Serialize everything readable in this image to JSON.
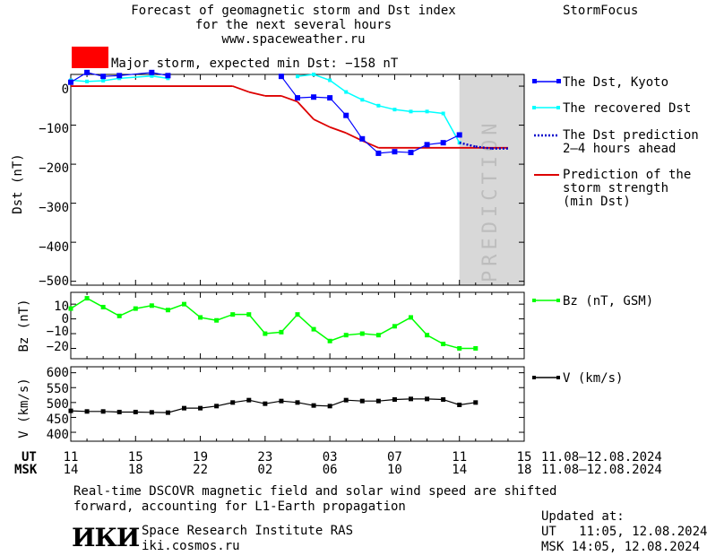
{
  "header": {
    "title_line1": "Forecast of geomagnetic storm and Dst index",
    "title_line2": "for the next several hours",
    "site": "www.spaceweather.ru",
    "brand": "StormFocus",
    "storm_label": "Major storm, expected min Dst: −158 nT",
    "storm_color": "#ff0000"
  },
  "colors": {
    "dst_kyoto": "#0000ff",
    "recovered": "#00ffff",
    "prediction_line": "#0000cc",
    "storm_strength": "#dd0000",
    "bz": "#00ff00",
    "speed": "#000000",
    "prediction_band": "#d8d8d8"
  },
  "panels": {
    "dst": {
      "ylabel": "Dst (nT)",
      "yticks": [
        "0",
        "−100",
        "−200",
        "−300",
        "−400",
        "−500"
      ]
    },
    "bz": {
      "ylabel": "Bz (nT)",
      "yticks": [
        "10",
        "0",
        "−10",
        "−20"
      ]
    },
    "v": {
      "ylabel": "V (km/s)",
      "yticks": [
        "600",
        "550",
        "500",
        "450",
        "400"
      ]
    }
  },
  "prediction_band_label": "PREDICTION",
  "legend": {
    "dst_kyoto": "The Dst, Kyoto",
    "recovered": "The recovered Dst",
    "prediction": [
      "The Dst prediction",
      "2–4 hours ahead"
    ],
    "storm_strength": [
      "Prediction of the",
      "storm strength",
      "(min Dst)"
    ],
    "bz": "Bz (nT, GSM)",
    "v": "V (km/s)"
  },
  "time_axis": {
    "ut_label": "UT",
    "msk_label": "MSK",
    "ut_ticks": [
      "11",
      "15",
      "19",
      "23",
      "03",
      "07",
      "11",
      "15"
    ],
    "msk_ticks": [
      "14",
      "18",
      "22",
      "02",
      "06",
      "10",
      "14",
      "18"
    ],
    "ut_range": "11.08–12.08.2024",
    "msk_range": "11.08–12.08.2024"
  },
  "footer": {
    "note_line1": "Real-time DSCOVR magnetic field and solar wind speed are shifted",
    "note_line2": "forward, accounting for L1-Earth propagation",
    "logo": "ИКИ",
    "institute": "Space Research Institute RAS",
    "institute_url": "iki.cosmos.ru",
    "updated_label": "Updated at:",
    "updated_ut": "UT   11:05, 12.08.2024",
    "updated_msk": "MSK 14:05, 12.08.2024"
  },
  "chart_data": [
    {
      "type": "line",
      "ylabel": "Dst (nT)",
      "ylim": [
        -510,
        30
      ],
      "xlim_hours": [
        0,
        28
      ],
      "prediction_band_hours": [
        24,
        28
      ],
      "series": [
        {
          "name": "The Dst, Kyoto",
          "x": [
            0,
            1,
            2,
            3,
            5,
            6,
            13,
            14,
            15,
            16,
            17,
            18,
            19,
            20,
            21,
            22,
            23,
            24
          ],
          "y": [
            10,
            35,
            25,
            27,
            35,
            27,
            25,
            -30,
            -28,
            -30,
            -75,
            -135,
            -172,
            -168,
            -170,
            -150,
            -145,
            -125
          ]
        },
        {
          "name": "The recovered Dst",
          "x": [
            0,
            1,
            2,
            3,
            5,
            6,
            14,
            15,
            16,
            17,
            18,
            19,
            20,
            21,
            22,
            23,
            24
          ],
          "y": [
            15,
            12,
            14,
            20,
            26,
            20,
            25,
            30,
            15,
            -15,
            -35,
            -50,
            -60,
            -65,
            -65,
            -70,
            -145
          ]
        },
        {
          "name": "The Dst prediction 2–4 hours ahead",
          "x": [
            24,
            25,
            26,
            27
          ],
          "y": [
            -145,
            -155,
            -160,
            -160
          ]
        },
        {
          "name": "Prediction of the storm strength (min Dst)",
          "x": [
            0,
            10,
            11,
            12,
            13,
            14,
            15,
            16,
            17,
            18,
            19,
            27
          ],
          "y": [
            0,
            0,
            -15,
            -25,
            -25,
            -40,
            -85,
            -105,
            -120,
            -140,
            -158,
            -158
          ]
        }
      ]
    },
    {
      "type": "line",
      "ylabel": "Bz (nT)",
      "ylim": [
        -27,
        18
      ],
      "xlim_hours": [
        0,
        28
      ],
      "series": [
        {
          "name": "Bz (nT, GSM)",
          "x": [
            0,
            1,
            2,
            3,
            4,
            5,
            6,
            7,
            8,
            9,
            10,
            11,
            12,
            13,
            14,
            15,
            16,
            17,
            18,
            19,
            20,
            21,
            22,
            23,
            24,
            25
          ],
          "y": [
            7,
            14,
            8,
            2,
            7,
            9,
            6,
            10,
            1,
            -1,
            3,
            3,
            -10,
            -9,
            3,
            -7,
            -15,
            -11,
            -10,
            -11,
            -5,
            1,
            -11,
            -17,
            -20,
            -20
          ]
        }
      ]
    },
    {
      "type": "line",
      "ylabel": "V (km/s)",
      "ylim": [
        370,
        620
      ],
      "xlim_hours": [
        0,
        28
      ],
      "series": [
        {
          "name": "V (km/s)",
          "x": [
            0,
            1,
            2,
            3,
            4,
            5,
            6,
            7,
            8,
            9,
            10,
            11,
            12,
            13,
            14,
            15,
            16,
            17,
            18,
            19,
            20,
            21,
            22,
            23,
            24,
            25
          ],
          "y": [
            472,
            470,
            470,
            468,
            468,
            467,
            466,
            481,
            481,
            488,
            500,
            508,
            496,
            505,
            500,
            490,
            488,
            508,
            505,
            505,
            510,
            512,
            512,
            510,
            492,
            500
          ]
        }
      ]
    }
  ]
}
